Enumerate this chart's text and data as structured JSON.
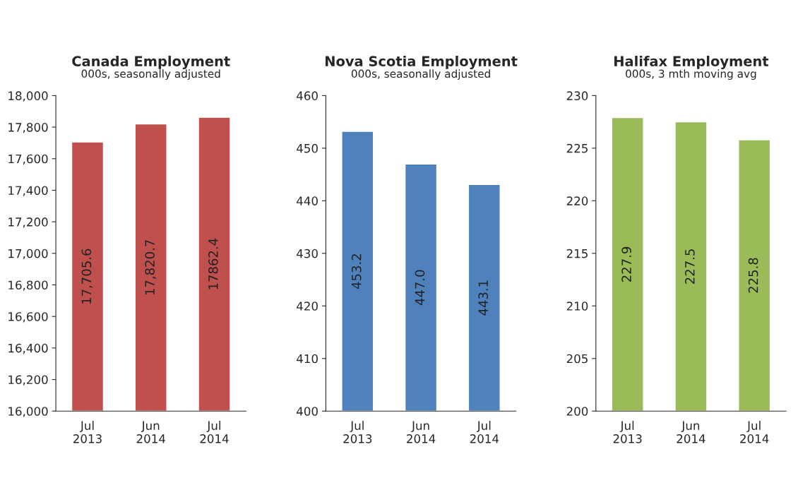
{
  "chart_data": [
    {
      "type": "bar",
      "title": "Canada Employment",
      "subtitle": "000s, seasonally adjusted",
      "categories": [
        "Jul\n2013",
        "Jun\n2014",
        "Jul\n2014"
      ],
      "values": [
        17705.6,
        17820.7,
        17862.4
      ],
      "value_labels": [
        "17,705.6",
        "17,820.7",
        "17862.4"
      ],
      "color": "#c0504d",
      "ylim": [
        16000,
        18000
      ],
      "yticks": [
        {
          "value": 16000,
          "label": "16,000"
        },
        {
          "value": 16200,
          "label": "16,200"
        },
        {
          "value": 16400,
          "label": "16,400"
        },
        {
          "value": 16600,
          "label": "16,600"
        },
        {
          "value": 16800,
          "label": "16,800"
        },
        {
          "value": 17000,
          "label": "17,000"
        },
        {
          "value": 17200,
          "label": "17,200"
        },
        {
          "value": 17400,
          "label": "17,400"
        },
        {
          "value": 17600,
          "label": "17,600"
        },
        {
          "value": 17800,
          "label": "17,800"
        },
        {
          "value": 18000,
          "label": "18,000"
        }
      ],
      "grid": false,
      "legend": false
    },
    {
      "type": "bar",
      "title": "Nova Scotia Employment",
      "subtitle": "000s, seasonally adjusted",
      "categories": [
        "Jul\n2013",
        "Jun\n2014",
        "Jul\n2014"
      ],
      "values": [
        453.2,
        447.0,
        443.1
      ],
      "value_labels": [
        "453.2",
        "447.0",
        "443.1"
      ],
      "color": "#4f81bd",
      "ylim": [
        400,
        460
      ],
      "yticks": [
        400,
        410,
        420,
        430,
        440,
        450,
        460
      ],
      "grid": false,
      "legend": false
    },
    {
      "type": "bar",
      "title": "Halifax Employment",
      "subtitle": "000s, 3 mth moving avg",
      "categories": [
        "Jul\n2013",
        "Jun\n2014",
        "Jul\n2014"
      ],
      "values": [
        227.9,
        227.5,
        225.8
      ],
      "value_labels": [
        "227.9",
        "227.5",
        "225.8"
      ],
      "color": "#9bbb59",
      "ylim": [
        200,
        230
      ],
      "yticks": [
        200,
        205,
        210,
        215,
        220,
        225,
        230
      ],
      "grid": false,
      "legend": false
    }
  ]
}
